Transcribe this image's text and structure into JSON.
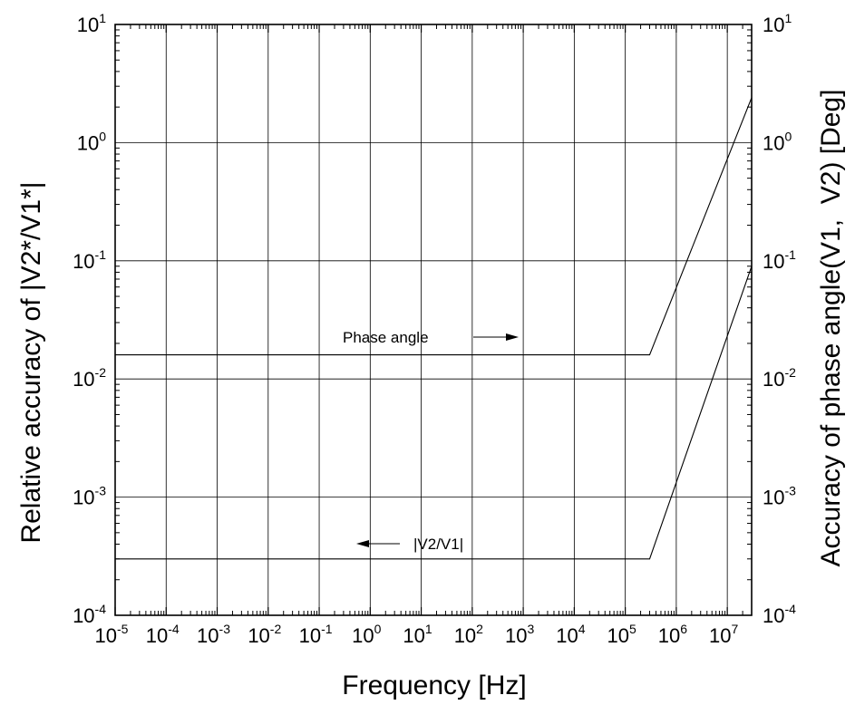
{
  "chart_data": {
    "type": "line",
    "xlabel": "Frequency [Hz]",
    "ylabel_left": "Relative accuracy of |V2*/V1*|",
    "ylabel_right": "Accuracy of phase angle(V1,  V2) [Deg]",
    "x_scale": "log",
    "y_scale": "log",
    "xlim": [
      1e-05,
      30000000.0
    ],
    "ylim": [
      0.0001,
      10
    ],
    "x_ticks": [
      {
        "base": "10",
        "exp": "-5",
        "value": 1e-05
      },
      {
        "base": "10",
        "exp": "-4",
        "value": 0.0001
      },
      {
        "base": "10",
        "exp": "-3",
        "value": 0.001
      },
      {
        "base": "10",
        "exp": "-2",
        "value": 0.01
      },
      {
        "base": "10",
        "exp": "-1",
        "value": 0.1
      },
      {
        "base": "10",
        "exp": "0",
        "value": 1
      },
      {
        "base": "10",
        "exp": "1",
        "value": 10
      },
      {
        "base": "10",
        "exp": "2",
        "value": 100
      },
      {
        "base": "10",
        "exp": "3",
        "value": 1000
      },
      {
        "base": "10",
        "exp": "4",
        "value": 10000
      },
      {
        "base": "10",
        "exp": "5",
        "value": 100000
      },
      {
        "base": "10",
        "exp": "6",
        "value": 1000000
      },
      {
        "base": "10",
        "exp": "7",
        "value": 10000000
      }
    ],
    "y_ticks_left": [
      {
        "base": "10",
        "exp": "-4",
        "value": 0.0001
      },
      {
        "base": "10",
        "exp": "-3",
        "value": 0.001
      },
      {
        "base": "10",
        "exp": "-2",
        "value": 0.01
      },
      {
        "base": "10",
        "exp": "-1",
        "value": 0.1
      },
      {
        "base": "10",
        "exp": "0",
        "value": 1
      },
      {
        "base": "10",
        "exp": "1",
        "value": 10
      }
    ],
    "y_ticks_right": [
      {
        "base": "10",
        "exp": "-4",
        "value": 0.0001
      },
      {
        "base": "10",
        "exp": "-3",
        "value": 0.001
      },
      {
        "base": "10",
        "exp": "-2",
        "value": 0.01
      },
      {
        "base": "10",
        "exp": "-1",
        "value": 0.1
      },
      {
        "base": "10",
        "exp": "0",
        "value": 1
      },
      {
        "base": "10",
        "exp": "1",
        "value": 10
      }
    ],
    "grid": true,
    "series": [
      {
        "name": "Phase angle",
        "axis": "right",
        "points": [
          [
            1e-05,
            0.016
          ],
          [
            300000.0,
            0.016
          ],
          [
            30000000.0,
            2.4
          ]
        ]
      },
      {
        "name": "|V2/V1|",
        "axis": "left",
        "points": [
          [
            1e-05,
            0.0003
          ],
          [
            300000.0,
            0.0003
          ],
          [
            30000000.0,
            0.09
          ]
        ]
      }
    ],
    "annotations": [
      {
        "text": "Phase angle",
        "arrow": "right"
      },
      {
        "text": "|V2/V1|",
        "arrow": "left"
      }
    ]
  }
}
